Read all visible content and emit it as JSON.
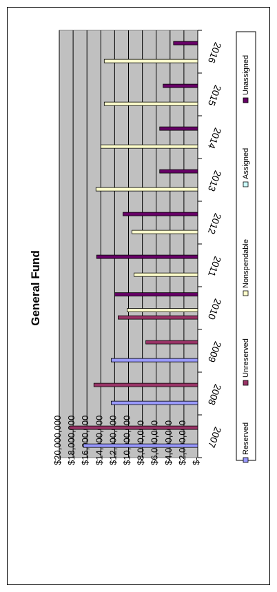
{
  "chart_data": {
    "type": "bar",
    "title": "General Fund",
    "orientation": "horizontal",
    "categories": [
      "2007",
      "2008",
      "2009",
      "2010",
      "2011",
      "2012",
      "2013",
      "2014",
      "2015",
      "2016"
    ],
    "y_ticks": [
      "$20,000,000",
      "$18,000,000",
      "$16,000,000",
      "$14,000,000",
      "$12,000,000",
      "$10,000,000",
      "$8,000,000",
      "$6,000,000",
      "$4,000,000",
      "$2,000,000",
      "$-"
    ],
    "ylim": [
      0,
      20000000
    ],
    "grid": true,
    "plot_background": "#c0c0c0",
    "legend_position": "right",
    "series": [
      {
        "name": "Reserved",
        "color": "#9999ff",
        "values": [
          16500000,
          12500000,
          12500000,
          null,
          null,
          null,
          null,
          null,
          null,
          null
        ]
      },
      {
        "name": "Unreserved",
        "color": "#993366",
        "values": [
          18500000,
          15000000,
          7500000,
          11500000,
          null,
          null,
          null,
          null,
          null,
          null
        ]
      },
      {
        "name": "Nonspendable",
        "color": "#ffffcc",
        "values": [
          null,
          null,
          null,
          10200000,
          9200000,
          9500000,
          14700000,
          14000000,
          13500000,
          13500000
        ]
      },
      {
        "name": "Assigned",
        "color": "#ccffff",
        "values": [
          null,
          null,
          null,
          null,
          null,
          null,
          null,
          null,
          null,
          null
        ]
      },
      {
        "name": "Unassigned",
        "color": "#660066",
        "values": [
          null,
          null,
          null,
          12000000,
          14600000,
          10800000,
          5500000,
          5500000,
          5000000,
          3500000
        ]
      }
    ]
  }
}
